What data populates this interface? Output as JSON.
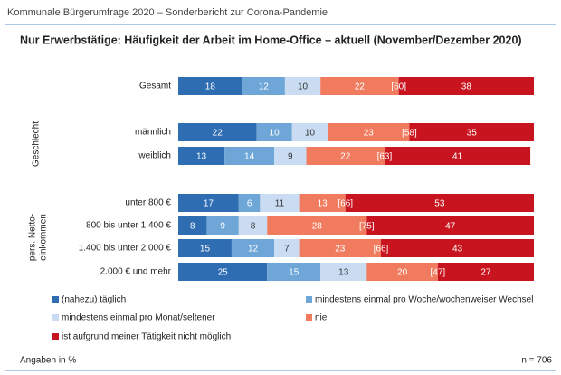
{
  "header": "Kommunale Bürgerumfrage 2020 – Sonderbericht zur Corona-Pandemie",
  "chart_data": {
    "type": "stacked-bar-horizontal",
    "title": "Nur Erwerbstätige: Häufigkeit der Arbeit im Home-Office – aktuell (November/Dezember 2020)",
    "categories": [
      "Gesamt",
      "männlich",
      "weiblich",
      "unter 800 €",
      "800 bis unter 1.400 €",
      "1.400 bis unter 2.000 €",
      "2.000 € und mehr"
    ],
    "group_labels": {
      "gender": "Geschlecht",
      "income": [
        "pers. Netto-",
        "einkommen"
      ]
    },
    "xlim": [
      0,
      100
    ],
    "series": [
      {
        "name": "(nahezu) täglich",
        "color": "#2f6db3",
        "text_color": "#ffffff",
        "values": [
          18,
          22,
          13,
          17,
          8,
          15,
          25
        ]
      },
      {
        "name": "mindestens einmal pro Woche/wochenweiser Wechsel",
        "color": "#6fa6d8",
        "text_color": "#ffffff",
        "values": [
          12,
          10,
          14,
          6,
          9,
          12,
          15
        ]
      },
      {
        "name": "mindestens einmal pro Monat/seltener",
        "color": "#c9dcf2",
        "text_color": "#333333",
        "values": [
          10,
          10,
          9,
          11,
          8,
          7,
          13
        ]
      },
      {
        "name": "nie",
        "color": "#f07b5f",
        "text_color": "#ffffff",
        "values": [
          22,
          23,
          22,
          13,
          28,
          23,
          20
        ]
      },
      {
        "name": "ist aufgrund meiner Tätigkeit nicht möglich",
        "color": "#c8141e",
        "text_color": "#ffffff",
        "values": [
          38,
          35,
          41,
          53,
          47,
          43,
          27
        ]
      }
    ],
    "combined": {
      "values": [
        60,
        58,
        63,
        66,
        75,
        66,
        47
      ],
      "value_labels": [
        "[60]",
        "[58]",
        "[63]",
        "[66]",
        "[75]",
        "[66]",
        "[47]"
      ]
    },
    "note": "Angaben in %",
    "sample": "n = 706"
  }
}
